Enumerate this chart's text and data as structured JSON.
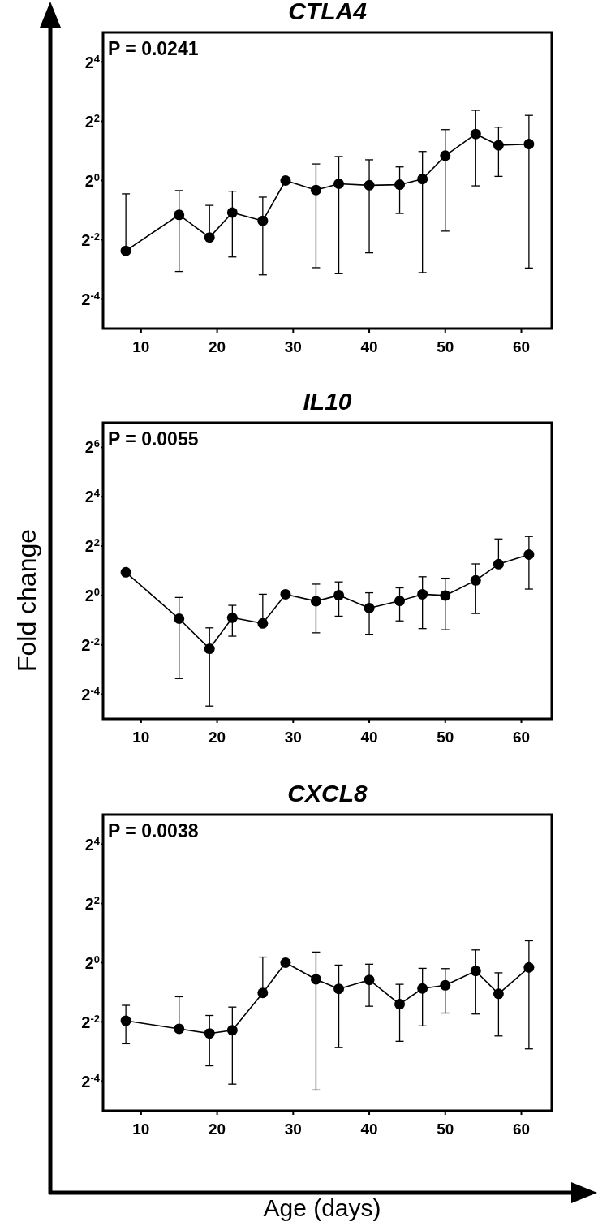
{
  "chart_data": [
    {
      "type": "line",
      "title": "CTLA4",
      "annotations": [
        "P = 0.0241"
      ],
      "log": "y",
      "marker": "circle",
      "line_style": "solid",
      "xlim": [
        5,
        64
      ],
      "xticks": [
        10,
        20,
        30,
        40,
        50,
        60
      ],
      "ylim": [
        0.03125,
        32
      ],
      "yticks": [
        {
          "value": 0.0625,
          "label": "2$^{-4}$"
        },
        {
          "value": 0.25,
          "label": "2$^{-2}$"
        },
        {
          "value": 1,
          "label": "2$^{0}$"
        },
        {
          "value": 4,
          "label": "2$^{2}$"
        },
        {
          "value": 16,
          "label": "2$^{4}$"
        }
      ],
      "x": [
        8,
        15,
        19,
        22,
        26,
        29,
        33,
        36,
        40,
        44,
        47,
        50,
        54,
        57,
        61
      ],
      "series": [
        {
          "color": "#000000",
          "values": [
            0.193,
            0.448,
            0.264,
            0.473,
            0.389,
            1,
            0.801,
            0.927,
            0.895,
            0.908,
            1.035,
            1.79,
            2.969,
            2.282,
            2.346
          ],
          "errors": [
            [
              0.193,
              0.732
            ],
            [
              0.119,
              0.79
            ],
            [
              0.264,
              0.559
            ],
            [
              0.167,
              0.779
            ],
            [
              0.11,
              0.678
            ],
            null,
            [
              0.13,
              1.474
            ],
            [
              0.113,
              1.753
            ],
            [
              0.184,
              1.625
            ],
            [
              0.463,
              1.375
            ],
            [
              0.116,
              1.972
            ],
            [
              0.306,
              3.294
            ],
            [
              0.883,
              5.17
            ],
            [
              1.102,
              3.482
            ],
            [
              0.129,
              4.595
            ]
          ]
        }
      ]
    },
    {
      "type": "line",
      "title": "IL10",
      "ylabel": "Fold change",
      "annotations": [
        "P = 0.0055"
      ],
      "log": "y",
      "marker": "circle",
      "line_style": "solid",
      "xlim": [
        5,
        64
      ],
      "xticks": [
        10,
        20,
        30,
        40,
        50,
        60
      ],
      "ylim": [
        0.03125,
        128
      ],
      "yticks": [
        {
          "value": 0.0625,
          "label": "2$^{-4}$"
        },
        {
          "value": 0.25,
          "label": "2$^{-2}$"
        },
        {
          "value": 1,
          "label": "2$^{0}$"
        },
        {
          "value": 4,
          "label": "2$^{2}$"
        },
        {
          "value": 16,
          "label": "2$^{4}$"
        },
        {
          "value": 64,
          "label": "2$^{6}$"
        }
      ],
      "x": [
        8,
        15,
        19,
        22,
        26,
        29,
        33,
        36,
        40,
        44,
        47,
        50,
        54,
        57,
        61
      ],
      "series": [
        {
          "color": "#000000",
          "values": [
            1.919,
            0.521,
            0.224,
            0.536,
            0.457,
            1.035,
            0.853,
            1.007,
            0.702,
            0.859,
            1.035,
            1,
            1.526,
            2.412,
            3.16
          ],
          "errors": [
            null,
            [
              0.097,
              0.946
            ],
            [
              0.0448,
              0.403
            ],
            [
              0.319,
              0.758
            ],
            [
              0.457,
              1.035
            ],
            null,
            [
              0.351,
              1.375
            ],
            [
              0.559,
              1.464
            ],
            [
              0.337,
              1.079
            ],
            [
              0.49,
              1.24
            ],
            [
              0.395,
              1.693
            ],
            [
              0.382,
              1.625
            ],
            [
              0.603,
              2.428
            ],
            [
              2.412,
              4.891
            ],
            [
              1.197,
              5.242
            ]
          ]
        }
      ]
    },
    {
      "type": "line",
      "title": "CXCL8",
      "xlabel": "Age (days)",
      "annotations": [
        "P = 0.0038"
      ],
      "log": "y",
      "marker": "circle",
      "line_style": "solid",
      "xlim": [
        5,
        64
      ],
      "xticks": [
        10,
        20,
        30,
        40,
        50,
        60
      ],
      "ylim": [
        0.03125,
        32
      ],
      "yticks": [
        {
          "value": 0.0625,
          "label": "2$^{-4}$"
        },
        {
          "value": 0.25,
          "label": "2$^{-2}$"
        },
        {
          "value": 1,
          "label": "2$^{0}$"
        },
        {
          "value": 4,
          "label": "2$^{2}$"
        },
        {
          "value": 16,
          "label": "2$^{4}$"
        }
      ],
      "x": [
        8,
        15,
        19,
        22,
        26,
        29,
        33,
        36,
        40,
        44,
        47,
        50,
        54,
        57,
        61
      ],
      "series": [
        {
          "color": "#000000",
          "values": [
            0.257,
            0.213,
            0.191,
            0.206,
            0.493,
            1,
            0.678,
            0.543,
            0.669,
            0.379,
            0.547,
            0.59,
            0.824,
            0.483,
            0.895
          ],
          "errors": [
            [
              0.15,
              0.369
            ],
            [
              0.213,
              0.451
            ],
            [
              0.0896,
              0.291
            ],
            [
              0.0583,
              0.354
            ],
            [
              0.493,
              1.141
            ],
            null,
            [
              0.0508,
              1.283
            ],
            [
              0.137,
              0.946
            ],
            [
              0.361,
              0.966
            ],
            [
              0.159,
              0.603
            ],
            [
              0.228,
              0.877
            ],
            [
              0.308,
              0.871
            ],
            [
              0.301,
              1.347
            ],
            [
              0.18,
              0.79
            ],
            [
              0.133,
              1.67
            ]
          ]
        }
      ]
    }
  ]
}
